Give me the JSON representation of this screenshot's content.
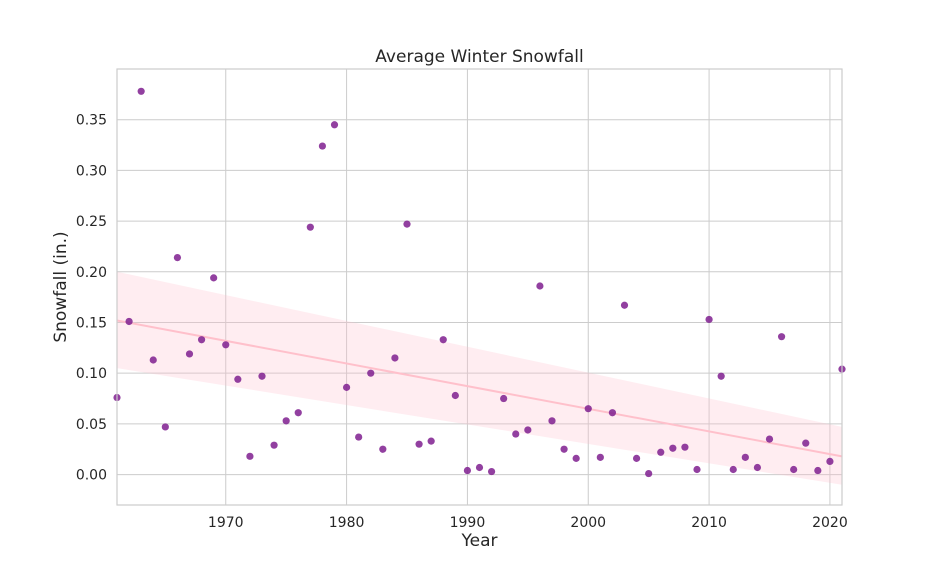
{
  "chart_data": {
    "type": "scatter",
    "title": "Average Winter Snowfall",
    "xlabel": "Year",
    "ylabel": "Snowfall (in.)",
    "xlim": [
      1961,
      2021
    ],
    "ylim": [
      -0.03,
      0.4
    ],
    "xticks": [
      1970,
      1980,
      1990,
      2000,
      2010,
      2020
    ],
    "yticks": [
      0.0,
      0.05,
      0.1,
      0.15,
      0.2,
      0.25,
      0.3,
      0.35
    ],
    "grid": true,
    "colors": {
      "points": "#7f1f8f",
      "trend_line": "#ffc0cb",
      "confidence_band": "#ffc0cb",
      "grid": "#cccccc",
      "text": "#262626"
    },
    "series": [
      {
        "x": [
          1961,
          1962,
          1963,
          1964,
          1965,
          1966,
          1967,
          1968,
          1969,
          1970,
          1971,
          1972,
          1973,
          1974,
          1975,
          1976,
          1977,
          1978,
          1979,
          1980,
          1981,
          1982,
          1983,
          1984,
          1985,
          1986,
          1987,
          1988,
          1989,
          1990,
          1991,
          1992,
          1993,
          1994,
          1995,
          1996,
          1997,
          1998,
          1999,
          2000,
          2001,
          2002,
          2003,
          2004,
          2005,
          2006,
          2007,
          2008,
          2009,
          2010,
          2011,
          2012,
          2013,
          2014,
          2015,
          2016,
          2017,
          2018,
          2019,
          2020,
          2021
        ],
        "values": [
          0.076,
          0.151,
          0.378,
          0.113,
          0.047,
          0.214,
          0.119,
          0.133,
          0.194,
          0.128,
          0.094,
          0.018,
          0.097,
          0.029,
          0.053,
          0.061,
          0.244,
          0.324,
          0.345,
          0.086,
          0.037,
          0.1,
          0.025,
          0.115,
          0.247,
          0.03,
          0.033,
          0.133,
          0.078,
          0.004,
          0.007,
          0.003,
          0.075,
          0.04,
          0.044,
          0.186,
          0.053,
          0.025,
          0.016,
          0.065,
          0.017,
          0.061,
          0.167,
          0.016,
          0.001,
          0.022,
          0.026,
          0.027,
          0.005,
          0.153,
          0.097,
          0.005,
          0.017,
          0.007,
          0.035,
          0.136,
          0.005,
          0.031,
          0.004,
          0.013,
          0.104
        ]
      }
    ],
    "trend": {
      "x": [
        1961,
        2021
      ],
      "y": [
        0.152,
        0.018
      ],
      "ci_lower": [
        0.105,
        -0.01
      ],
      "ci_upper": [
        0.2,
        0.047
      ]
    }
  }
}
